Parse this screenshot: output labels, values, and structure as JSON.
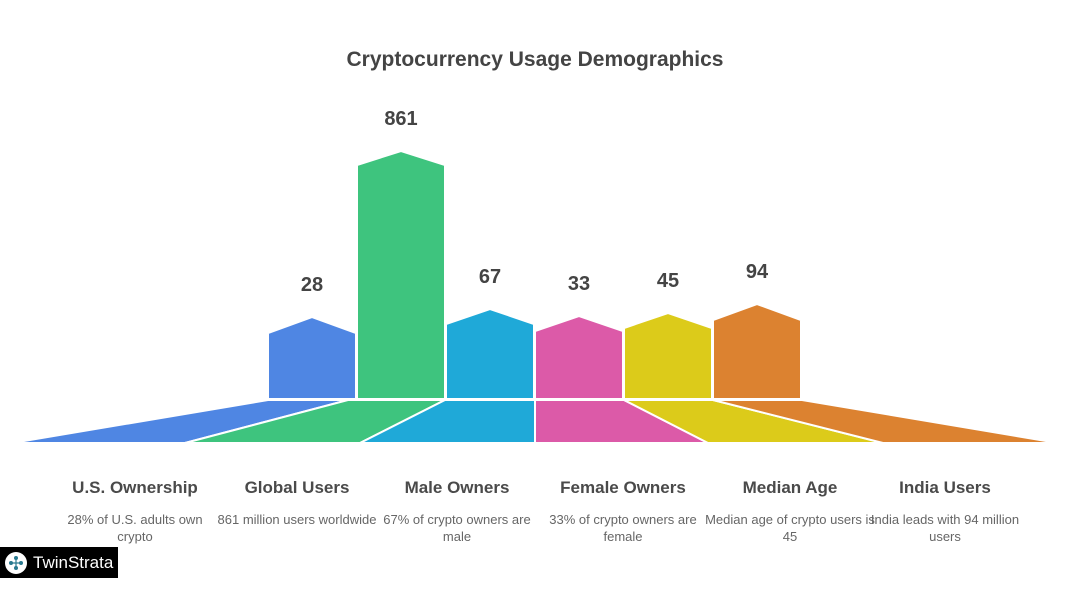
{
  "chart_data": {
    "type": "bar",
    "title": "Cryptocurrency Usage Demographics",
    "categories": [
      "U.S. Ownership",
      "Global Users",
      "Male Owners",
      "Female Owners",
      "Median Age",
      "India Users"
    ],
    "values": [
      28,
      861,
      67,
      33,
      45,
      94
    ],
    "descriptions": [
      "28% of U.S. adults own crypto",
      "861 million users worldwide",
      "67% of crypto owners are male",
      "33% of crypto owners are female",
      "Median age of crypto users is 45",
      "India leads with 94 million users"
    ],
    "colors": [
      "#4f86e3",
      "#3ec47e",
      "#1fa9d8",
      "#dc5aa8",
      "#dccb1a",
      "#dc8230"
    ]
  },
  "logo": {
    "text": "TwinStrata"
  }
}
